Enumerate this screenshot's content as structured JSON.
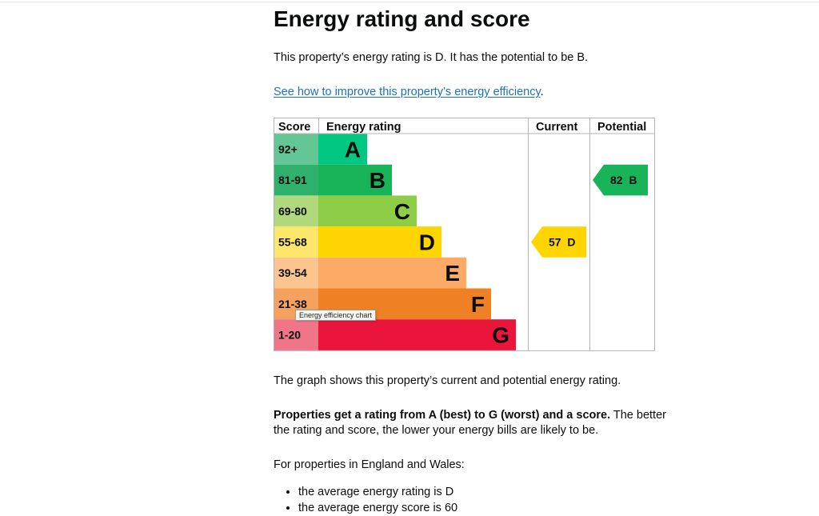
{
  "page": {
    "title": "Energy rating and score",
    "rating_sentence": "This property’s energy rating is D. It has the potential to be B.",
    "improve_link": "See how to improve this property’s energy efficiency",
    "improve_link_suffix": ".",
    "graph_sentence": "The graph shows this property’s current and potential energy rating.",
    "scale_bold": "Properties get a rating from A (best) to G (worst) and a score.",
    "scale_rest": " The better",
    "scale_line2": "the rating and score, the lower your energy bills are likely to be.",
    "england_wales": "For properties in England and Wales:",
    "bullets": [
      "the average energy rating is D",
      "the average energy score is 60"
    ]
  },
  "tooltip": "Energy efficiency chart",
  "chart_data": {
    "type": "table",
    "headers": {
      "score": "Score",
      "rating": "Energy rating",
      "current": "Current",
      "potential": "Potential"
    },
    "bands": [
      {
        "score": "92+",
        "letter": "A",
        "score_color": "#63c695",
        "band_color": "#00c781"
      },
      {
        "score": "81-91",
        "letter": "B",
        "score_color": "#2fb06d",
        "band_color": "#19b459"
      },
      {
        "score": "69-80",
        "letter": "C",
        "score_color": "#b0d97d",
        "band_color": "#8dce46"
      },
      {
        "score": "55-68",
        "letter": "D",
        "score_color": "#fde76b",
        "band_color": "#ffd500"
      },
      {
        "score": "39-54",
        "letter": "E",
        "score_color": "#fcc48f",
        "band_color": "#fcaa65"
      },
      {
        "score": "21-38",
        "letter": "F",
        "score_color": "#f4a25e",
        "band_color": "#ef8023"
      },
      {
        "score": "1-20",
        "letter": "G",
        "score_color": "#f07588",
        "band_color": "#e9153b"
      }
    ],
    "current": {
      "value": 57,
      "letter": "D",
      "label": "57  D",
      "color": "#ffd500"
    },
    "potential": {
      "value": 82,
      "letter": "B",
      "label": "82  B",
      "color": "#19b459"
    }
  }
}
